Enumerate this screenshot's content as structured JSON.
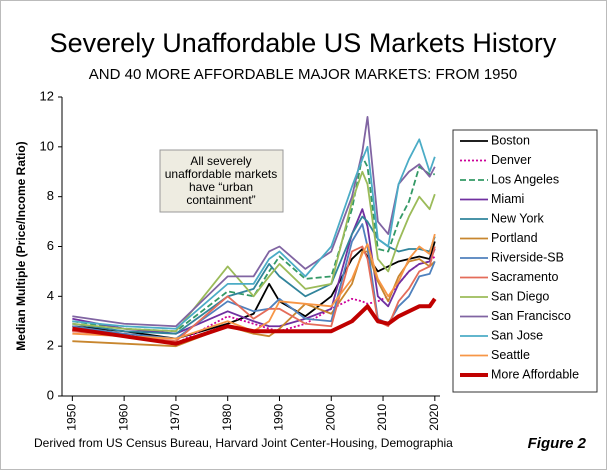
{
  "chart_data": {
    "type": "line",
    "title": "Severely Unaffordable US Markets History",
    "subtitle": "AND 40 MORE AFFORDABLE MAJOR MARKETS: FROM 1950",
    "y_label": "Median Multiple (Price/Income Ratio)",
    "annotation": [
      "All severely",
      "unaffordable markets",
      "have “urban",
      "containment”"
    ],
    "source": "Derived from US Census Bureau, Harvard Joint Center-Housing, Demographia",
    "figure_label": "Figure 2",
    "x": [
      1950,
      1960,
      1970,
      1980,
      1985,
      1988,
      1990,
      1995,
      2000,
      2004,
      2006,
      2007,
      2009,
      2011,
      2013,
      2015,
      2017,
      2019,
      2020
    ],
    "xlim": [
      1948,
      2021
    ],
    "xticks": [
      1950,
      1960,
      1970,
      1980,
      1990,
      2000,
      2010,
      2020
    ],
    "ylim": [
      0,
      12
    ],
    "yticks": [
      0,
      2,
      4,
      6,
      8,
      10,
      12
    ],
    "grid": false,
    "legend": "right",
    "series": [
      {
        "name": "Boston",
        "color": "#000000",
        "style": "solid",
        "values": [
          2.8,
          2.6,
          2.3,
          2.9,
          3.3,
          4.5,
          3.8,
          3.2,
          4.0,
          5.5,
          5.9,
          5.6,
          5.0,
          5.2,
          5.4,
          5.5,
          5.6,
          5.5,
          6.2
        ]
      },
      {
        "name": "Denver",
        "color": "#cc0099",
        "style": "dotted",
        "values": [
          2.6,
          2.5,
          2.1,
          3.2,
          2.9,
          2.7,
          2.6,
          2.9,
          3.5,
          3.9,
          3.8,
          3.7,
          3.8,
          4.0,
          4.5,
          5.0,
          5.3,
          5.4,
          5.6
        ]
      },
      {
        "name": "Los Angeles",
        "color": "#339966",
        "style": "dashed",
        "values": [
          3.0,
          2.7,
          2.6,
          4.2,
          4.0,
          5.0,
          5.6,
          4.7,
          4.8,
          7.5,
          9.6,
          9.2,
          5.9,
          5.8,
          7.0,
          7.8,
          9.2,
          8.9,
          8.9
        ]
      },
      {
        "name": "Miami",
        "color": "#7030a0",
        "style": "solid",
        "values": [
          3.1,
          2.7,
          2.5,
          3.4,
          3.0,
          2.8,
          2.8,
          3.1,
          3.5,
          6.5,
          7.5,
          6.8,
          4.0,
          3.6,
          4.5,
          5.0,
          5.3,
          5.4,
          5.9
        ]
      },
      {
        "name": "New York",
        "color": "#31849b",
        "style": "solid",
        "values": [
          2.9,
          2.6,
          2.5,
          4.0,
          4.3,
          5.3,
          4.8,
          4.0,
          4.5,
          6.5,
          7.2,
          7.0,
          6.3,
          6.0,
          5.8,
          5.9,
          5.9,
          5.8,
          6.4
        ]
      },
      {
        "name": "Portland",
        "color": "#c8862e",
        "style": "solid",
        "values": [
          2.2,
          2.1,
          2.0,
          2.8,
          2.5,
          2.4,
          2.7,
          3.7,
          3.3,
          4.5,
          5.8,
          5.8,
          4.6,
          3.8,
          4.8,
          5.4,
          5.5,
          5.2,
          5.4
        ]
      },
      {
        "name": "Riverside-SB",
        "color": "#4f81bd",
        "style": "solid",
        "values": [
          2.8,
          2.5,
          2.3,
          3.8,
          3.4,
          3.5,
          3.9,
          3.1,
          3.0,
          6.2,
          6.9,
          6.0,
          3.1,
          2.9,
          3.6,
          4.0,
          4.8,
          4.9,
          5.4
        ]
      },
      {
        "name": "Sacramento",
        "color": "#e46c5a",
        "style": "solid",
        "values": [
          2.6,
          2.4,
          2.2,
          4.0,
          3.1,
          3.5,
          3.5,
          2.9,
          2.8,
          5.8,
          6.0,
          5.5,
          3.0,
          2.8,
          3.8,
          4.3,
          5.0,
          5.2,
          6.0
        ]
      },
      {
        "name": "San Diego",
        "color": "#9bbb59",
        "style": "solid",
        "values": [
          2.9,
          2.7,
          2.6,
          5.2,
          4.0,
          4.8,
          5.3,
          4.3,
          4.5,
          7.8,
          9.0,
          8.5,
          5.5,
          5.0,
          6.2,
          7.2,
          8.0,
          7.5,
          8.1
        ]
      },
      {
        "name": "San Francisco",
        "color": "#8064a2",
        "style": "solid",
        "values": [
          3.2,
          2.9,
          2.8,
          4.8,
          4.8,
          5.8,
          6.0,
          5.1,
          5.8,
          8.0,
          9.8,
          11.2,
          7.0,
          6.5,
          8.5,
          9.0,
          9.3,
          8.8,
          9.2
        ]
      },
      {
        "name": "San Jose",
        "color": "#4bacc6",
        "style": "solid",
        "values": [
          3.0,
          2.8,
          2.7,
          4.5,
          4.5,
          5.5,
          5.8,
          4.8,
          6.0,
          8.4,
          9.5,
          10.0,
          6.3,
          6.0,
          8.5,
          9.5,
          10.3,
          9.0,
          9.6
        ]
      },
      {
        "name": "Seattle",
        "color": "#f79646",
        "style": "solid",
        "values": [
          2.5,
          2.4,
          2.3,
          3.0,
          2.6,
          3.0,
          3.8,
          3.7,
          3.6,
          4.7,
          5.7,
          6.1,
          4.7,
          4.0,
          4.6,
          5.5,
          6.0,
          5.7,
          6.5
        ]
      },
      {
        "name": "More Affordable",
        "color": "#c00000",
        "style": "thick",
        "values": [
          2.7,
          2.4,
          2.1,
          2.8,
          2.6,
          2.6,
          2.6,
          2.6,
          2.6,
          3.0,
          3.4,
          3.6,
          3.0,
          2.9,
          3.2,
          3.4,
          3.6,
          3.6,
          3.9
        ]
      }
    ]
  }
}
